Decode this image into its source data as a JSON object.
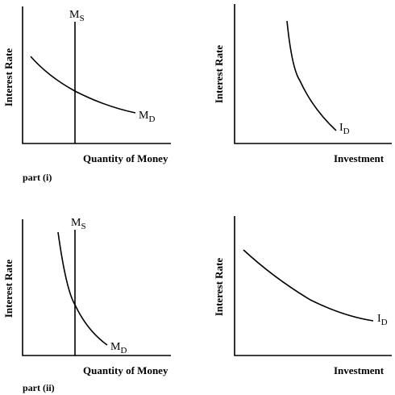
{
  "chart_data": [
    {
      "type": "line",
      "panel": "money-market-part-i",
      "xlabel": "Quantity of Money",
      "ylabel": "Interest Rate",
      "part_label": "part (i)",
      "series": [
        {
          "label_main": "M",
          "label_sub": "S",
          "shape": "vertical"
        },
        {
          "label_main": "M",
          "label_sub": "D",
          "shape": "downward-shallow"
        }
      ]
    },
    {
      "type": "line",
      "panel": "investment-part-i",
      "xlabel": "Investment",
      "ylabel": "Interest Rate",
      "series": [
        {
          "label_main": "I",
          "label_sub": "D",
          "shape": "downward-steep"
        }
      ]
    },
    {
      "type": "line",
      "panel": "money-market-part-ii",
      "xlabel": "Quantity of Money",
      "ylabel": "Interest Rate",
      "part_label": "part (ii)",
      "series": [
        {
          "label_main": "M",
          "label_sub": "S",
          "shape": "vertical"
        },
        {
          "label_main": "M",
          "label_sub": "D",
          "shape": "downward-steep"
        }
      ]
    },
    {
      "type": "line",
      "panel": "investment-part-ii",
      "xlabel": "Investment",
      "ylabel": "Interest Rate",
      "series": [
        {
          "label_main": "I",
          "label_sub": "D",
          "shape": "downward-shallow"
        }
      ]
    }
  ]
}
